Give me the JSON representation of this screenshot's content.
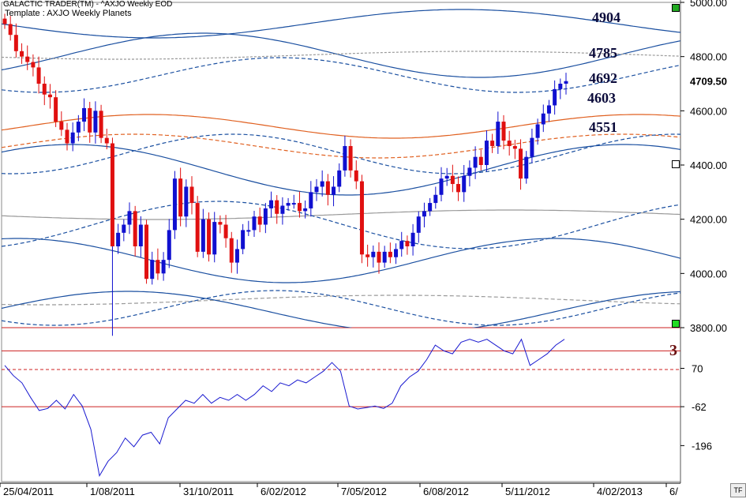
{
  "header": {
    "app_title": "GALACTIC TRADER(TM) - ^AXJO Weekly EOD",
    "template": "Template : AXJO Weekly Planets"
  },
  "markers": [
    {
      "text": "4904"
    },
    {
      "text": "4785"
    },
    {
      "text": "4692"
    },
    {
      "text": "4603"
    },
    {
      "text": "4551"
    }
  ],
  "price_label": "4709.50",
  "indicator_label": "3",
  "corner_label": "TF",
  "colors": {
    "up": "#1010d0",
    "down": "#e01010",
    "band": "#1a4fa0",
    "orange": "#e06020",
    "gray": "#999999",
    "osc": "#1a1ad0",
    "redline": "#cc2020"
  },
  "chart_data": [
    {
      "type": "candlestick",
      "title": "AXJO Weekly",
      "y_ticks": [
        5000,
        4800,
        4600,
        4400,
        4200,
        4000,
        3800
      ],
      "y_tick_labels": [
        "5000.00",
        "4800.00",
        "4600.00",
        "4400.00",
        "4200.00",
        "4000.00",
        "3800.00"
      ],
      "ylim": [
        3800,
        5000
      ],
      "x_labels": [
        "25/04/2011",
        "1/08/2011",
        "31/10/2011",
        "6/02/2012",
        "7/05/2012",
        "6/08/2012",
        "5/11/2012",
        "4/02/2013",
        "6/"
      ],
      "last_price": 4709.5,
      "closes": [
        4920,
        4880,
        4820,
        4800,
        4780,
        4760,
        4700,
        4660,
        4650,
        4560,
        4530,
        4480,
        4520,
        4560,
        4610,
        4520,
        4600,
        4500,
        4480,
        4100,
        4150,
        4180,
        4230,
        4100,
        4180,
        3980,
        4050,
        4000,
        4050,
        4160,
        4350,
        4210,
        4320,
        4260,
        4080,
        4200,
        4070,
        4190,
        4180,
        4130,
        4040,
        4090,
        4160,
        4160,
        4210,
        4180,
        4240,
        4270,
        4220,
        4250,
        4260,
        4260,
        4230,
        4240,
        4300,
        4320,
        4340,
        4290,
        4320,
        4380,
        4470,
        4380,
        4340,
        4070,
        4060,
        4080,
        4040,
        4080,
        4060,
        4090,
        4120,
        4100,
        4150,
        4210,
        4230,
        4260,
        4290,
        4350,
        4360,
        4330,
        4300,
        4360,
        4390,
        4430,
        4400,
        4490,
        4470,
        4560,
        4490,
        4470,
        4460,
        4350,
        4430,
        4500,
        4550,
        4590,
        4620,
        4680,
        4700,
        4709.5
      ]
    },
    {
      "type": "line",
      "title": "Oscillator",
      "y_ticks": [
        70,
        -62,
        -196
      ],
      "y_tick_labels": [
        "70",
        "-62",
        "-196"
      ],
      "ylim": [
        -320,
        210
      ],
      "values": [
        80,
        45,
        20,
        -30,
        -75,
        -68,
        -40,
        -70,
        -20,
        -60,
        -140,
        -300,
        -250,
        -220,
        -170,
        -200,
        -160,
        -150,
        -190,
        -100,
        -70,
        -40,
        -50,
        -20,
        -50,
        -30,
        -40,
        -20,
        -40,
        -20,
        10,
        -10,
        20,
        10,
        30,
        20,
        40,
        60,
        90,
        60,
        -60,
        -70,
        -65,
        -60,
        -68,
        -50,
        10,
        40,
        60,
        100,
        150,
        130,
        120,
        160,
        170,
        160,
        170,
        150,
        130,
        120,
        170,
        80,
        100,
        120,
        150,
        170
      ]
    }
  ]
}
